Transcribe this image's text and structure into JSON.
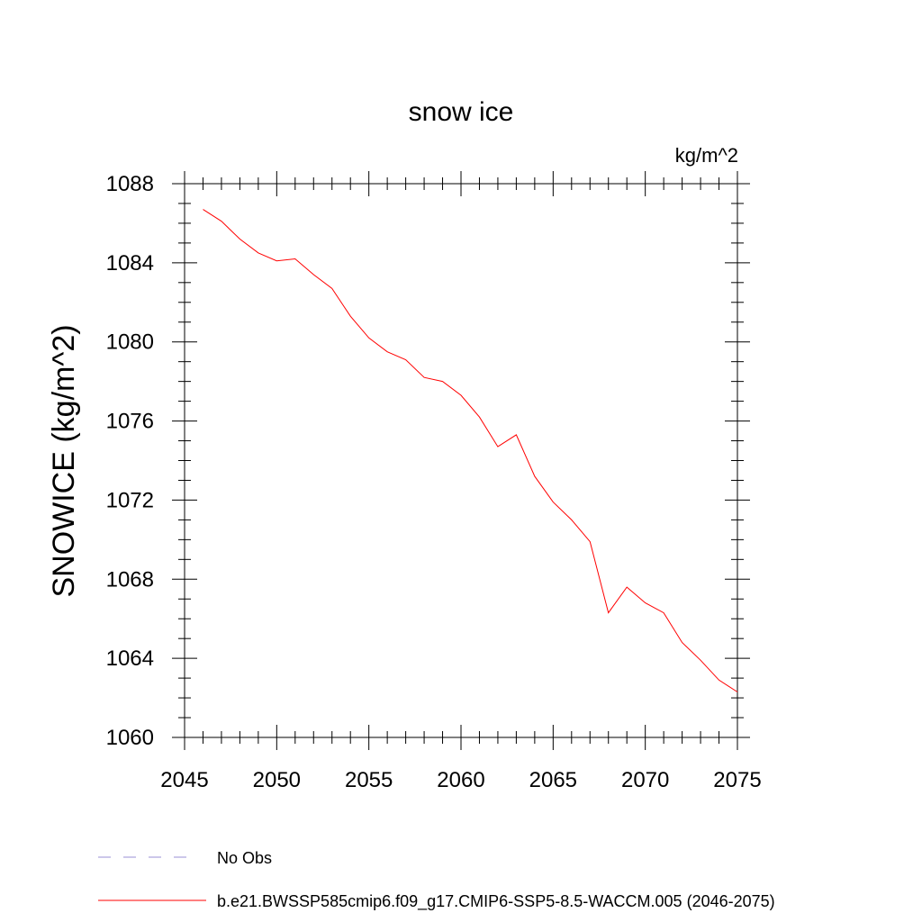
{
  "chart_data": {
    "type": "line",
    "title": "snow ice",
    "units_label": "kg/m^2",
    "xlabel": "",
    "ylabel": "SNOWICE  (kg/m^2)",
    "xlim": [
      2045,
      2075
    ],
    "ylim": [
      1060,
      1088
    ],
    "xticks": [
      2045,
      2050,
      2055,
      2060,
      2065,
      2070,
      2075
    ],
    "yticks": [
      1060,
      1064,
      1068,
      1072,
      1076,
      1080,
      1084,
      1088
    ],
    "grid": false,
    "legend_position": "bottom",
    "series": [
      {
        "name": "b.e21.BWSSP585cmip6.f09_g17.CMIP6-SSP5-8.5-WACCM.005 (2046-2075)",
        "color": "#ff0000",
        "style": "solid",
        "x": [
          2046,
          2047,
          2048,
          2049,
          2050,
          2051,
          2052,
          2053,
          2054,
          2055,
          2056,
          2057,
          2058,
          2059,
          2060,
          2061,
          2062,
          2063,
          2064,
          2065,
          2066,
          2067,
          2068,
          2069,
          2070,
          2071,
          2072,
          2073,
          2074,
          2075
        ],
        "y": [
          1086.7,
          1086.1,
          1085.2,
          1084.5,
          1084.1,
          1084.2,
          1083.4,
          1082.7,
          1081.3,
          1080.2,
          1079.5,
          1079.1,
          1078.2,
          1078.0,
          1077.3,
          1076.2,
          1074.7,
          1075.3,
          1073.2,
          1071.9,
          1071.0,
          1069.9,
          1066.3,
          1067.6,
          1066.8,
          1066.3,
          1064.8,
          1063.9,
          1062.9,
          1062.3
        ]
      },
      {
        "name": "No Obs",
        "color": "#9a8fd6",
        "style": "dashed",
        "x": [],
        "y": []
      }
    ]
  }
}
